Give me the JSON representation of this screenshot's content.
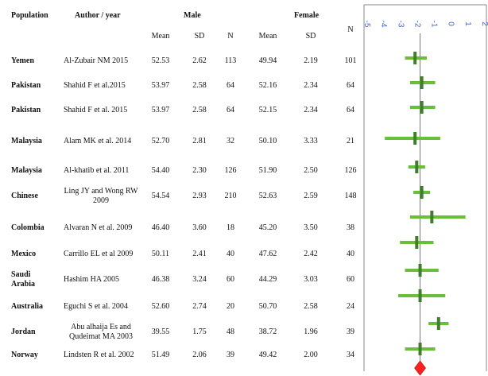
{
  "headers": {
    "population": "Population",
    "author": "Author  / year",
    "male": "Male",
    "female": "Female",
    "mean_m": "Mean",
    "sd_m": "SD",
    "n_m": "N",
    "mean_f": "Mean",
    "sd_f": "SD",
    "n_f": "N"
  },
  "rows": [
    {
      "population": "Yemen",
      "author": "Al-Zubair  NM 2015",
      "male_mean": "52.53",
      "male_sd": "2.62",
      "male_n": "113",
      "female_mean": "49.94",
      "female_sd": "2.19",
      "female_n": "101"
    },
    {
      "population": "Pakistan",
      "author": "Shahid F et al.2015",
      "male_mean": "53.97",
      "male_sd": "2.58",
      "male_n": "64",
      "female_mean": "52.16",
      "female_sd": "2.34",
      "female_n": "64"
    },
    {
      "population": "Pakistan",
      "author": "Shahid F et al. 2015",
      "male_mean": "53.97",
      "male_sd": "2.58",
      "male_n": "64",
      "female_mean": "52.15",
      "female_sd": "2.34",
      "female_n": "64"
    },
    {
      "population": "Malaysia",
      "author": "Alam  MK et al.  2014",
      "male_mean": "52.70",
      "male_sd": "2.81",
      "male_n": "32",
      "female_mean": "50.10",
      "female_sd": "3.33",
      "female_n": "21"
    },
    {
      "population": "Malaysia",
      "author": "Al-khatib  et al. 2011",
      "male_mean": "54.40",
      "male_sd": "2.30",
      "male_n": "126",
      "female_mean": "51.90",
      "female_sd": "2.50",
      "female_n": "126"
    },
    {
      "population": "Chinese",
      "author": "Ling  JY and Wong RW 2009",
      "male_mean": "54.54",
      "male_sd": "2.93",
      "male_n": "210",
      "female_mean": "52.63",
      "female_sd": "2.59",
      "female_n": "148"
    },
    {
      "population": "Colombia",
      "author": "Alvaran  N et al. 2009",
      "male_mean": "46.40",
      "male_sd": "3.60",
      "male_n": "18",
      "female_mean": "45.20",
      "female_sd": "3.50",
      "female_n": "38"
    },
    {
      "population": "Mexico",
      "author": "Carrillo  EL et al 2009",
      "male_mean": "50.11",
      "male_sd": "2.41",
      "male_n": "40",
      "female_mean": "47.62",
      "female_sd": "2.42",
      "female_n": "40"
    },
    {
      "population": "Saudi Arabia",
      "author": "Hashim  HA 2005",
      "male_mean": "46.38",
      "male_sd": "3.24",
      "male_n": "60",
      "female_mean": "44.29",
      "female_sd": "3.03",
      "female_n": "60"
    },
    {
      "population": "Australia",
      "author": "Eguchi  S et al. 2004",
      "male_mean": "52.60",
      "male_sd": "2.74",
      "male_n": "20",
      "female_mean": "50.70",
      "female_sd": "2.58",
      "female_n": "24"
    },
    {
      "population": "Jordan",
      "author": "Abu alhaija  Es and Qudeimat  MA 2003",
      "male_mean": "39.55",
      "male_sd": "1.75",
      "male_n": "48",
      "female_mean": "38.72",
      "female_sd": "1.96",
      "female_n": "39"
    },
    {
      "population": "Norway",
      "author": "Lindsten  R et al. 2002",
      "male_mean": "51.49",
      "male_sd": "2.06",
      "male_n": "39",
      "female_mean": "49.42",
      "female_sd": "2.00",
      "female_n": "34"
    }
  ],
  "chart_data": {
    "type": "scatter",
    "xlim": [
      -5,
      2
    ],
    "tick_labels": [
      "-5",
      "-4",
      "-3",
      "-2",
      "-1",
      "0",
      "1",
      "2"
    ],
    "tick_values": [
      -5,
      -4,
      -3,
      -2,
      -1,
      0,
      1,
      2
    ],
    "categories": [
      "Yemen",
      "Pakistan",
      "Pakistan",
      "Malaysia",
      "Malaysia",
      "Chinese",
      "Colombia",
      "Mexico",
      "Saudi Arabia",
      "Australia",
      "Jordan",
      "Norway"
    ],
    "estimates": [
      -2.2,
      -1.8,
      -1.8,
      -2.2,
      -2.1,
      -1.8,
      -1.2,
      -2.1,
      -1.9,
      -1.9,
      -0.8,
      -1.9
    ],
    "ci_lower": [
      -2.8,
      -2.5,
      -2.5,
      -4.0,
      -2.6,
      -2.3,
      -2.5,
      -3.1,
      -2.8,
      -3.2,
      -1.4,
      -2.8
    ],
    "ci_upper": [
      -1.5,
      -1.0,
      -1.0,
      -0.7,
      -1.6,
      -1.3,
      0.8,
      -1.1,
      -0.8,
      -0.4,
      -0.2,
      -1.0
    ],
    "pooled": -1.9,
    "colors": {
      "ci": "#6abf3a",
      "point": "#3f7f2a",
      "pooled": "#ff2020",
      "frame": "#888888",
      "ticks": "#4466cc"
    }
  }
}
